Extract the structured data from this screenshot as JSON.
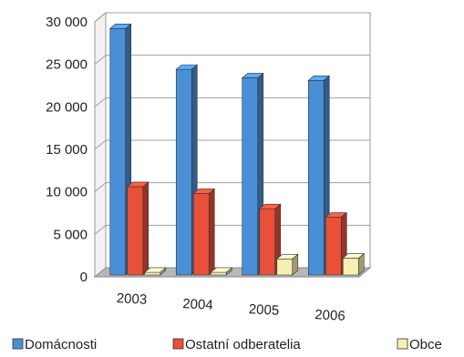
{
  "chart_data": {
    "type": "bar",
    "title": "",
    "xlabel": "",
    "ylabel": "",
    "categories": [
      "2003",
      "2004",
      "2005",
      "2006"
    ],
    "series": [
      {
        "name": "Domácnosti",
        "values": [
          29000,
          24200,
          23200,
          22900
        ],
        "color": "#4a8fd6"
      },
      {
        "name": "Ostatní odberatelia",
        "values": [
          10400,
          9600,
          7800,
          6800
        ],
        "color": "#e8503a"
      },
      {
        "name": "Obce",
        "values": [
          0,
          0,
          1900,
          2000
        ],
        "color": "#f7efb0"
      }
    ],
    "ylim": [
      0,
      30000
    ],
    "yticks": [
      "30 000",
      "25 000",
      "20 000",
      "15 000",
      "10 000",
      "5 000",
      "0"
    ],
    "ytick_values": [
      30000,
      25000,
      20000,
      15000,
      10000,
      5000,
      0
    ],
    "grid": true,
    "legend_position": "bottom"
  }
}
